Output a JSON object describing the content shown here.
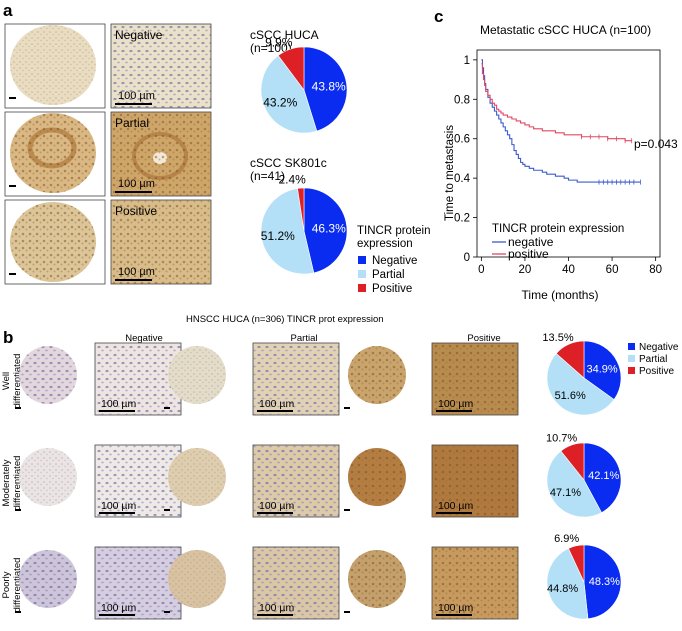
{
  "panels": {
    "a": {
      "label": "a",
      "rows": [
        {
          "label": "Negative",
          "scale": "100 µm"
        },
        {
          "label": "Partial",
          "scale": "100 µm"
        },
        {
          "label": "Positive",
          "scale": "100 µm"
        }
      ]
    },
    "b": {
      "label": "b",
      "title": "HNSCC HUCA (n=306) TINCR prot expression",
      "columns": [
        "Negative",
        "Partial",
        "Positive"
      ],
      "rows": [
        {
          "line1": "Well",
          "line2": "differentiated"
        },
        {
          "line1": "Moderately",
          "line2": "differentiated"
        },
        {
          "line1": "Poorly",
          "line2": "differentiated"
        }
      ],
      "scale": "100 µm"
    },
    "c": {
      "label": "c"
    }
  },
  "colors": {
    "negative": "#0a2cf0",
    "partial": "#b3e0f7",
    "positive": "#dd1f26",
    "km_negative": "#3b5bd0",
    "km_positive": "#e04862"
  },
  "legend_a": {
    "title1": "TINCR protein",
    "title2": "expression",
    "items": [
      "Negative",
      "Partial",
      "Positive"
    ]
  },
  "chart_data": [
    {
      "type": "pie",
      "title": "cSCC HUCA",
      "subtitle": "(n=100)",
      "categories": [
        "Negative",
        "Partial",
        "Positive"
      ],
      "values": [
        43.8,
        43.2,
        9.9
      ],
      "labels": [
        "43.8%",
        "43.2%",
        "9.9%"
      ]
    },
    {
      "type": "pie",
      "title": "cSCC SK801c",
      "subtitle": "(n=41)",
      "categories": [
        "Negative",
        "Partial",
        "Positive"
      ],
      "values": [
        46.3,
        51.2,
        2.4
      ],
      "labels": [
        "46.3%",
        "51.2%",
        "2.4%"
      ]
    },
    {
      "type": "pie",
      "title": "",
      "categories": [
        "Negative",
        "Partial",
        "Positive"
      ],
      "values": [
        34.9,
        51.6,
        13.5
      ],
      "labels": [
        "34.9%",
        "51.6%",
        "13.5%"
      ],
      "legend": [
        "Negative",
        "Partial",
        "Positive"
      ]
    },
    {
      "type": "pie",
      "title": "",
      "categories": [
        "Negative",
        "Partial",
        "Positive"
      ],
      "values": [
        42.1,
        47.1,
        10.7
      ],
      "labels": [
        "42.1%",
        "47.1%",
        "10.7%"
      ]
    },
    {
      "type": "pie",
      "title": "",
      "categories": [
        "Negative",
        "Partial",
        "Positive"
      ],
      "values": [
        48.3,
        44.8,
        6.9
      ],
      "labels": [
        "48.3%",
        "44.8%",
        "6.9%"
      ]
    },
    {
      "type": "line",
      "title": "Metastatic cSCC HUCA (n=100)",
      "xlabel": "Time (months)",
      "ylabel": "Time to metastasis",
      "xlim": [
        -2,
        82
      ],
      "ylim": [
        0,
        1.05
      ],
      "xticks": [
        0,
        20,
        40,
        60,
        80
      ],
      "yticks": [
        0,
        0.2,
        0.4,
        0.6,
        0.8,
        1
      ],
      "annotation": "p=0.043",
      "legend_title": "TINCR protein expression",
      "series": [
        {
          "name": "negative",
          "x": [
            0,
            0.5,
            1,
            1.5,
            2,
            3,
            4,
            5,
            6,
            7,
            8,
            9,
            10,
            11,
            12,
            13,
            14,
            15,
            16,
            17,
            18,
            19,
            20,
            22,
            24,
            26,
            28,
            30,
            32,
            34,
            36,
            38,
            40,
            42,
            44,
            46,
            48,
            50,
            52,
            54,
            56,
            58,
            60,
            62,
            64,
            66,
            68,
            70,
            73
          ],
          "y": [
            1.0,
            0.96,
            0.92,
            0.88,
            0.85,
            0.81,
            0.78,
            0.76,
            0.74,
            0.72,
            0.7,
            0.68,
            0.66,
            0.64,
            0.62,
            0.6,
            0.57,
            0.54,
            0.52,
            0.5,
            0.48,
            0.47,
            0.46,
            0.45,
            0.44,
            0.44,
            0.43,
            0.42,
            0.42,
            0.41,
            0.41,
            0.4,
            0.39,
            0.39,
            0.38,
            0.38,
            0.38,
            0.38,
            0.38,
            0.38,
            0.38,
            0.38,
            0.38,
            0.38,
            0.38,
            0.38,
            0.38,
            0.38,
            0.38
          ]
        },
        {
          "name": "positive",
          "x": [
            0,
            0.5,
            1,
            1.5,
            2,
            3,
            4,
            5,
            6,
            7,
            8,
            9,
            10,
            12,
            14,
            16,
            18,
            20,
            22,
            24,
            26,
            28,
            30,
            34,
            38,
            42,
            46,
            50,
            54,
            58,
            62,
            66,
            69
          ],
          "y": [
            0.98,
            0.93,
            0.9,
            0.87,
            0.84,
            0.82,
            0.8,
            0.78,
            0.77,
            0.75,
            0.74,
            0.73,
            0.72,
            0.71,
            0.7,
            0.69,
            0.68,
            0.67,
            0.66,
            0.65,
            0.65,
            0.64,
            0.64,
            0.63,
            0.62,
            0.62,
            0.61,
            0.61,
            0.61,
            0.6,
            0.6,
            0.59,
            0.59
          ]
        }
      ]
    }
  ]
}
